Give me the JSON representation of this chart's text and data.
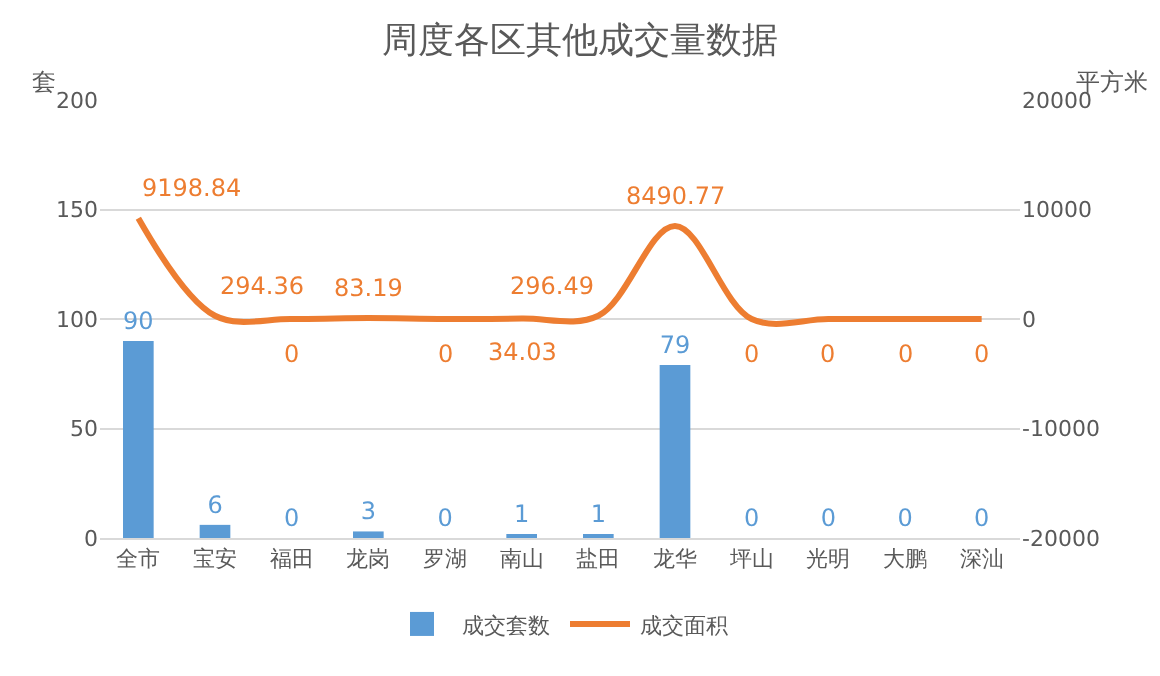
{
  "chart_data": {
    "type": "bar",
    "title": "周度各区其他成交量数据",
    "ylabel": "套",
    "y2label": "平方米",
    "categories": [
      "全市",
      "宝安",
      "福田",
      "龙岗",
      "罗湖",
      "南山",
      "盐田",
      "龙华",
      "坪山",
      "光明",
      "大鹏",
      "深汕"
    ],
    "series": [
      {
        "name": "成交套数",
        "color": "#5b9bd5",
        "values": [
          90,
          6,
          0,
          3,
          0,
          1,
          1,
          79,
          0,
          0,
          0,
          0
        ]
      },
      {
        "name": "成交面积",
        "type": "line",
        "axis": "y2",
        "color": "#ed7d31",
        "values": [
          9198.84,
          294.36,
          0,
          83.19,
          0,
          34.03,
          296.49,
          8490.77,
          0,
          0,
          0,
          0
        ]
      }
    ],
    "ylim": [
      0,
      200
    ],
    "yticks": [
      0,
      50,
      100,
      150,
      200
    ],
    "y2lim": [
      -20000,
      20000
    ],
    "y2ticks": [
      -20000,
      -10000,
      0,
      10000,
      20000
    ],
    "data_labels": true,
    "grid": "y",
    "legend": "bottom",
    "marker": "none"
  }
}
